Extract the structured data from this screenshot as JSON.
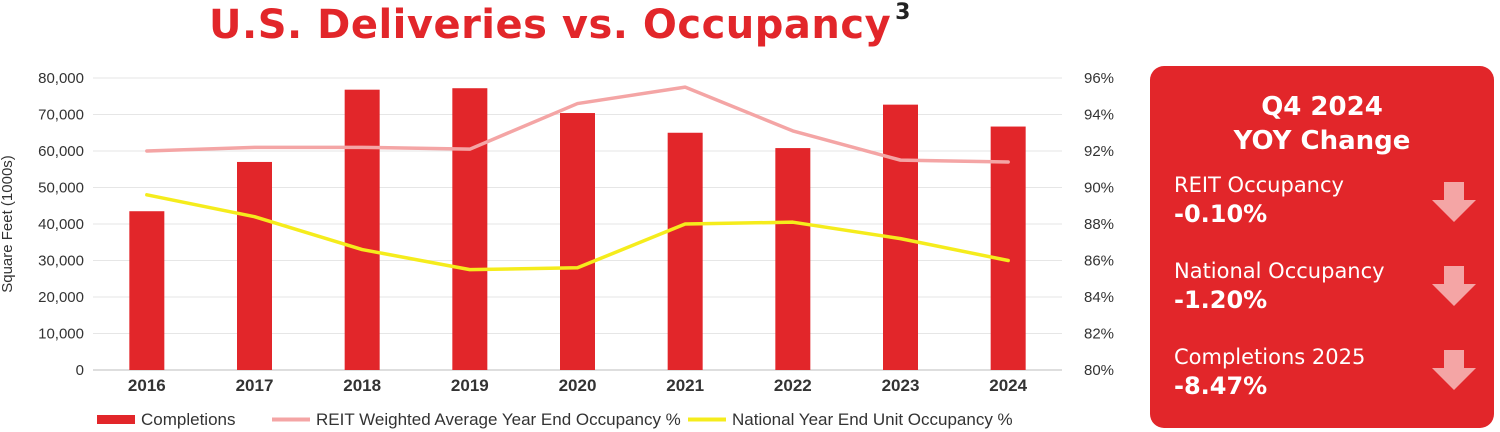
{
  "title": "U.S. Deliveries vs. Occupancy",
  "footnote": "3",
  "chart_data": {
    "type": "bar+line",
    "categories": [
      "2016",
      "2017",
      "2018",
      "2019",
      "2020",
      "2021",
      "2022",
      "2023",
      "2024"
    ],
    "y_left": {
      "label": "Square Feet (1000s)",
      "range": [
        0,
        80000
      ],
      "ticks": [
        "0",
        "10,000",
        "20,000",
        "30,000",
        "40,000",
        "50,000",
        "60,000",
        "70,000",
        "80,000"
      ]
    },
    "y_right": {
      "range": [
        80,
        96
      ],
      "ticks": [
        "80%",
        "82%",
        "84%",
        "86%",
        "88%",
        "90%",
        "92%",
        "94%",
        "96%"
      ]
    },
    "series": [
      {
        "name": "Completions",
        "kind": "bar",
        "axis": "left",
        "color": "#e2262a",
        "values": [
          43500,
          57000,
          76800,
          77200,
          70400,
          65000,
          60800,
          72700,
          66700
        ]
      },
      {
        "name": "REIT Weighted Average Year End Occupancy %",
        "kind": "line",
        "axis": "right",
        "color": "#f4a5a5",
        "values": [
          92.0,
          92.2,
          92.2,
          92.1,
          94.6,
          95.5,
          93.1,
          91.5,
          91.4
        ]
      },
      {
        "name": "National Year End Unit Occupancy %",
        "kind": "line",
        "axis": "right",
        "color": "#f5ec1c",
        "values": [
          89.6,
          88.4,
          86.6,
          85.5,
          85.6,
          88.0,
          88.1,
          87.2,
          86.0
        ]
      }
    ],
    "grid": true,
    "legend_position": "bottom"
  },
  "panel": {
    "heading_line1": "Q4 2024",
    "heading_line2": "YOY Change",
    "metrics": [
      {
        "label": "REIT Occupancy",
        "value": "-0.10%",
        "direction": "down"
      },
      {
        "label": "National Occupancy",
        "value": "-1.20%",
        "direction": "down"
      },
      {
        "label": "Completions 2025",
        "value": "-8.47%",
        "direction": "down"
      }
    ],
    "arrow_color": "#f4a5a5"
  }
}
